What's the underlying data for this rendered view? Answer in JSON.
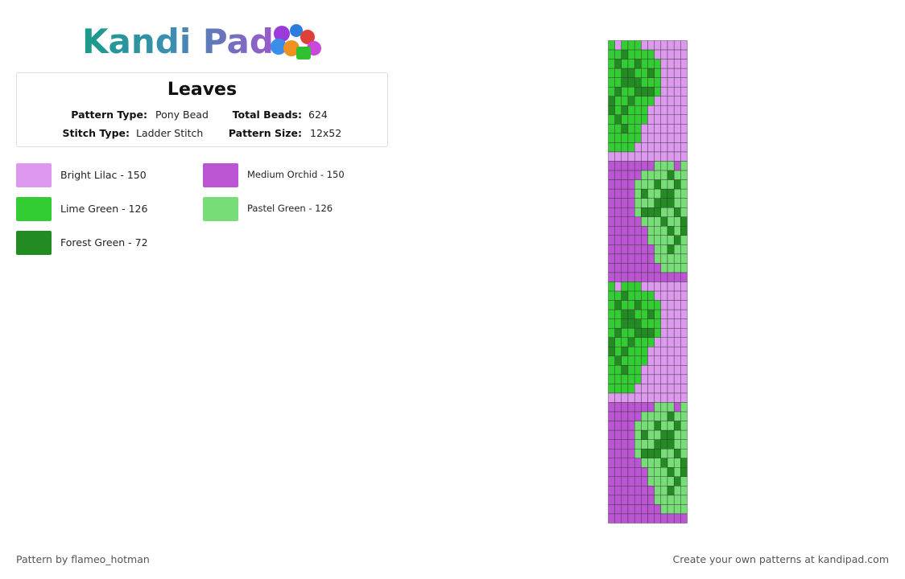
{
  "header": {
    "logo": "Kandi Pad"
  },
  "pattern": {
    "title": "Leaves",
    "info": [
      {
        "label": "Pattern Type:",
        "value": "Pony Bead"
      },
      {
        "label": "Total Beads:",
        "value": "624"
      },
      {
        "label": "Stitch Type:",
        "value": "Ladder Stitch"
      },
      {
        "label": "Pattern Size:",
        "value": "12x52"
      }
    ]
  },
  "legend": [
    {
      "text": "Bright Lilac - 150",
      "color": "#dd99ee"
    },
    {
      "text": "Medium Orchid - 150",
      "color": "#bb55d3"
    },
    {
      "text": "Lime Green - 126",
      "color": "#33cc33"
    },
    {
      "text": "Pastel Green - 126",
      "color": "#77dd77"
    },
    {
      "text": "Forest Green - 72",
      "color": "#228b22"
    }
  ],
  "footer": {
    "credit": "Pattern by flameo_hotman",
    "cta": "Create your own patterns at kandipad.com"
  }
}
